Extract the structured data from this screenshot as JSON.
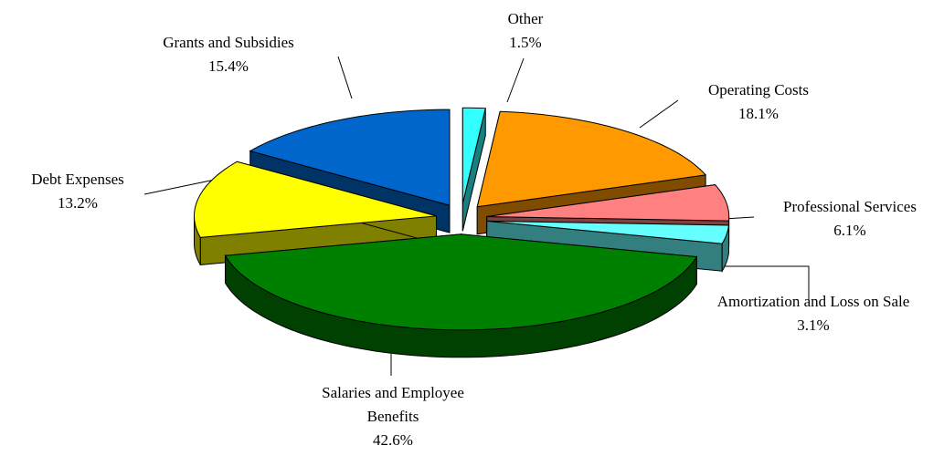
{
  "chart_data": {
    "type": "pie3d",
    "categories": [
      "Other",
      "Operating Costs",
      "Professional Services",
      "Amortization and Loss on Sale",
      "Salaries and Employee Benefits",
      "Debt Expenses",
      "Grants and Subsidies"
    ],
    "values": [
      1.5,
      18.1,
      6.1,
      3.1,
      42.6,
      13.2,
      15.4
    ],
    "value_labels": [
      "1.5%",
      "18.1%",
      "6.1%",
      "3.1%",
      "42.6%",
      "13.2%",
      "15.4%"
    ],
    "colors": [
      "#33ffff",
      "#ff9900",
      "#ff8080",
      "#66ffff",
      "#008000",
      "#ffff00",
      "#0066cc"
    ]
  }
}
